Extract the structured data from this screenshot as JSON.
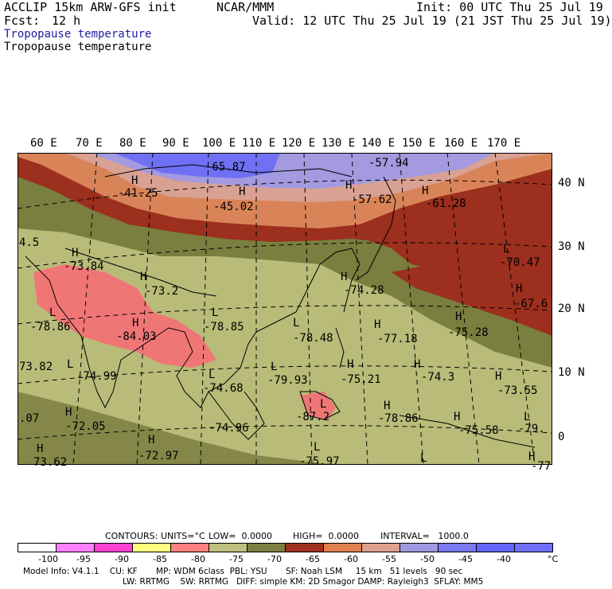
{
  "header": {
    "model": "ACCLIP 15km ARW-GFS init",
    "org": "NCAR/MMM",
    "init": "Init: 00 UTC Thu 25 Jul 19",
    "fcst_label": "Fcst:",
    "fcst_value": "12 h",
    "valid": "Valid: 12 UTC Thu 25 Jul 19 (21 JST Thu 25 Jul 19)",
    "field_title_blue": "Tropopause temperature",
    "field_title_black": "Tropopause temperature"
  },
  "axes": {
    "lon_labels": [
      "60 E",
      "70 E",
      "80 E",
      "90 E",
      "100 E",
      "110 E",
      "120 E",
      "130 E",
      "140 E",
      "150 E",
      "160 E",
      "170 E"
    ],
    "lat_labels": [
      "40 N",
      "30 N",
      "20 N",
      "10 N",
      "0"
    ]
  },
  "map_labels": [
    {
      "text": "-65.87"
    },
    {
      "text": "-57.94"
    },
    {
      "text": "-41.25"
    },
    {
      "text": "-45.02"
    },
    {
      "text": "-57.62"
    },
    {
      "text": "-61.28"
    },
    {
      "text": "4.5"
    },
    {
      "text": "-73.84"
    },
    {
      "text": "-70.47"
    },
    {
      "text": "-73.2"
    },
    {
      "text": "-74.28"
    },
    {
      "text": "-67.6"
    },
    {
      "text": "-78.86"
    },
    {
      "text": "-78.85"
    },
    {
      "text": "-75.28"
    },
    {
      "text": "-84.03"
    },
    {
      "text": "-78.48"
    },
    {
      "text": "-77.18"
    },
    {
      "text": "73.82"
    },
    {
      "text": "-74.99"
    },
    {
      "text": "-79.93"
    },
    {
      "text": "-75.21"
    },
    {
      "text": "-74.3"
    },
    {
      "text": "-74.68"
    },
    {
      "text": "-73.55"
    },
    {
      "text": ".07"
    },
    {
      "text": "-72.05"
    },
    {
      "text": "-87.2"
    },
    {
      "text": "-78.86"
    },
    {
      "text": "-74.96"
    },
    {
      "text": "-75.58"
    },
    {
      "text": "-79."
    },
    {
      "text": "73.62"
    },
    {
      "text": "-72.97"
    },
    {
      "text": "-75.97"
    },
    {
      "text": "-77"
    }
  ],
  "contour_info": {
    "contours": "CONTOURS:",
    "units": "UNITS=°C",
    "low": "LOW=  0.0000",
    "high": "HIGH=  0.0000",
    "interval": "INTERVAL=   1000.0"
  },
  "legend": {
    "ticks": [
      "-100",
      "-95",
      "-90",
      "-85",
      "-80",
      "-75",
      "-70",
      "-65",
      "-60",
      "-55",
      "-50",
      "-45",
      "-40"
    ],
    "unit": "°C",
    "colors": [
      "#ffffff",
      "#ff80ff",
      "#ff40d0",
      "#ffff80",
      "#ff8080",
      "#c0c080",
      "#7c8040",
      "#a03020",
      "#e08050",
      "#e0a090",
      "#a098e0",
      "#7878f0",
      "#6464ff",
      "#7070ff"
    ]
  },
  "footer": {
    "line1": "Model Info: V4.1.1    CU: KF       MP: WDM 6class  PBL: YSU       SF: Noah LSM     15 km   51 levels   90 sec",
    "line2": "LW: RRTMG    SW: RRTMG   DIFF: simple KM: 2D Smagor DAMP: Rayleigh3  SFLAY: MM5"
  }
}
